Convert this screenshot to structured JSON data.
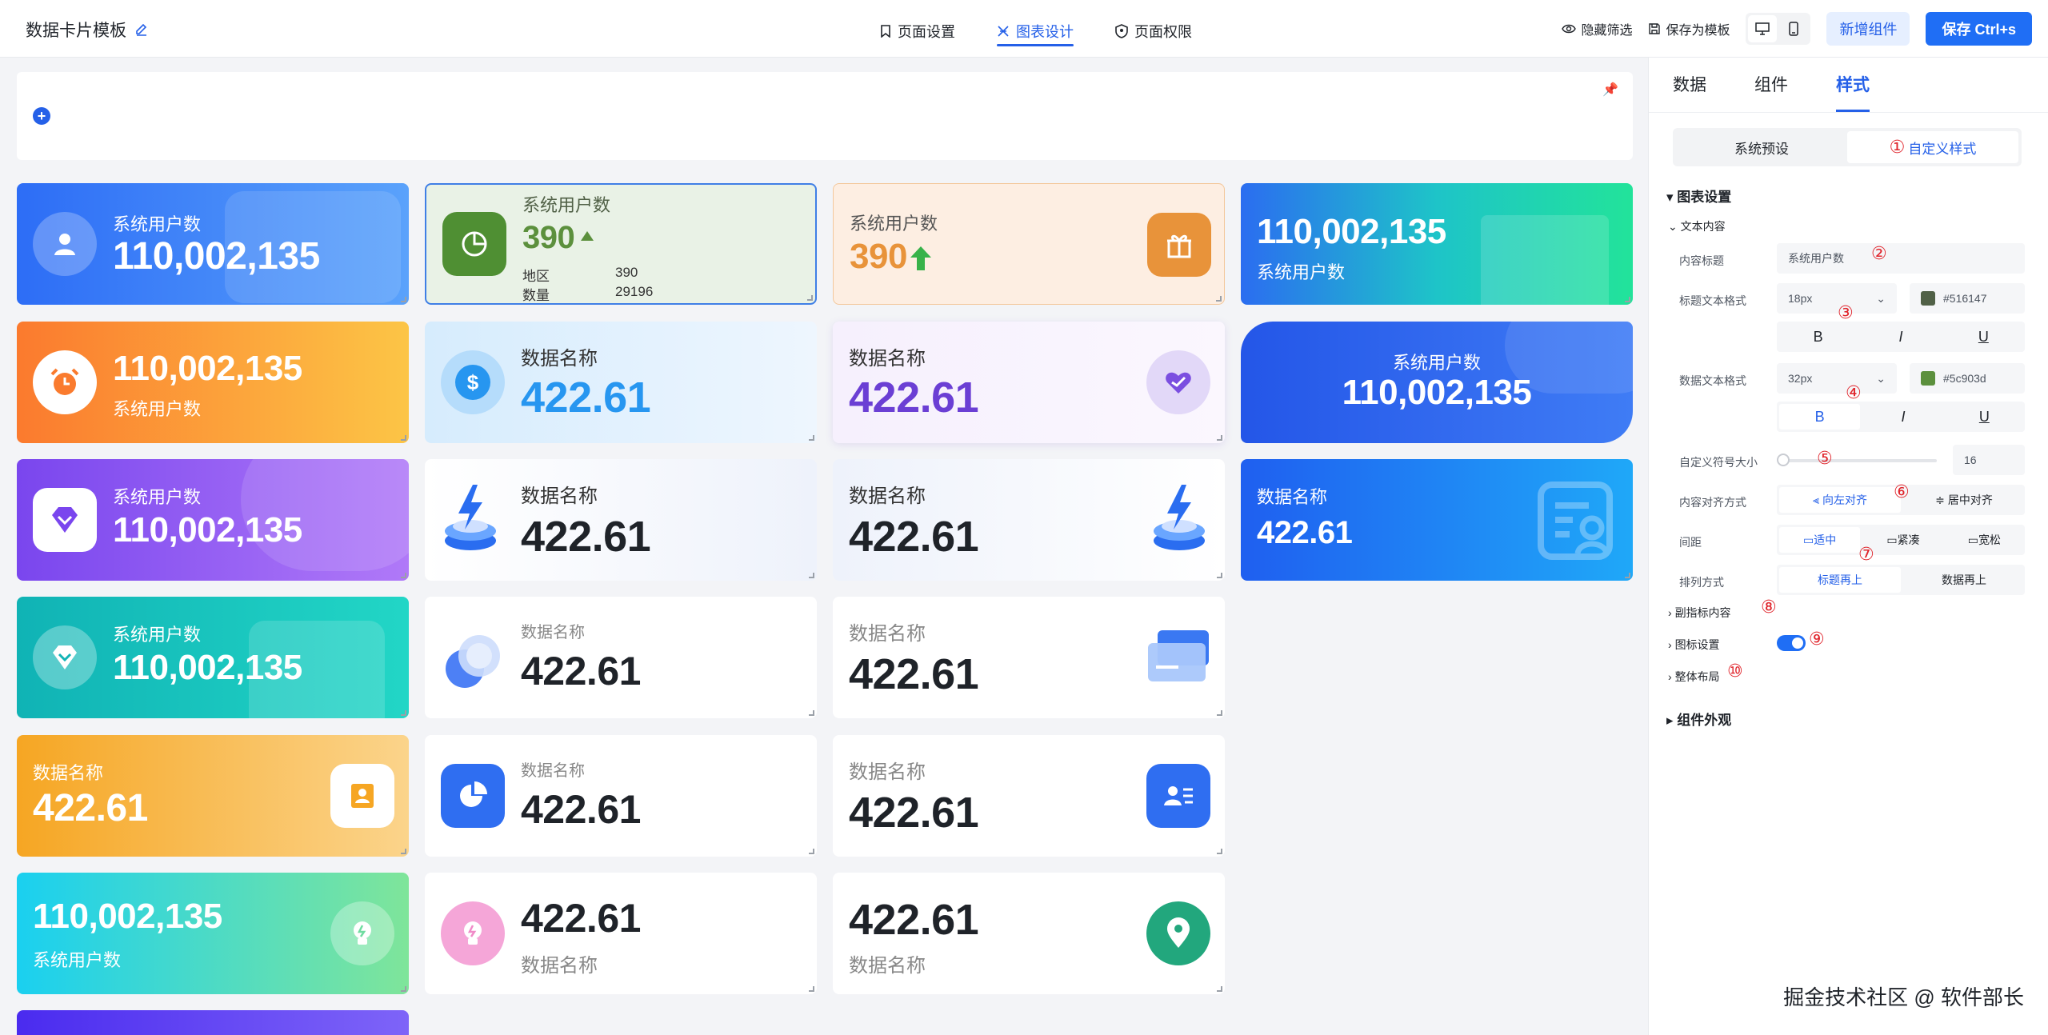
{
  "topbar": {
    "title": "数据卡片模板",
    "tabs": [
      {
        "label": "页面设置"
      },
      {
        "label": "图表设计"
      },
      {
        "label": "页面权限"
      }
    ],
    "hide_filter": "隐藏筛选",
    "save_template": "保存为模板",
    "add_component": "新增组件",
    "save": "保存 Ctrl+s"
  },
  "cards": {
    "a1": {
      "title": "系统用户数",
      "value": "110,002,135"
    },
    "a2": {
      "title": "系统用户数",
      "value": "390",
      "region_label": "地区",
      "region_value": "390",
      "qty_label": "数量",
      "qty_value": "29196"
    },
    "a3": {
      "title": "系统用户数",
      "value": "390"
    },
    "a4": {
      "title": "系统用户数",
      "value": "110,002,135"
    },
    "b1": {
      "title": "系统用户数",
      "value": "110,002,135"
    },
    "b2": {
      "title": "数据名称",
      "value": "422.61"
    },
    "b3": {
      "title": "数据名称",
      "value": "422.61"
    },
    "b4": {
      "title": "系统用户数",
      "value": "110,002,135"
    },
    "c1": {
      "title": "系统用户数",
      "value": "110,002,135"
    },
    "c2": {
      "title": "数据名称",
      "value": "422.61"
    },
    "c3": {
      "title": "数据名称",
      "value": "422.61"
    },
    "c4": {
      "title": "数据名称",
      "value": "422.61"
    },
    "d1": {
      "title": "系统用户数",
      "value": "110,002,135"
    },
    "d2": {
      "title": "数据名称",
      "value": "422.61"
    },
    "d3": {
      "title": "数据名称",
      "value": "422.61"
    },
    "e1": {
      "title": "数据名称",
      "value": "422.61"
    },
    "e2": {
      "title": "数据名称",
      "value": "422.61"
    },
    "e3": {
      "title": "数据名称",
      "value": "422.61"
    },
    "f1": {
      "title": "系统用户数",
      "value": "110,002,135"
    },
    "f2": {
      "title": "数据名称",
      "value": "422.61"
    },
    "f3": {
      "title": "数据名称",
      "value": "422.61"
    }
  },
  "panel": {
    "tabs": [
      {
        "label": "数据"
      },
      {
        "label": "组件"
      },
      {
        "label": "样式"
      }
    ],
    "seg": [
      {
        "label": "系统预设"
      },
      {
        "label": "自定义样式"
      }
    ],
    "chart_settings": "图表设置",
    "text_content": "文本内容",
    "content_title_label": "内容标题",
    "content_title_value": "系统用户数",
    "title_fmt_label": "标题文本格式",
    "title_size": "18px",
    "title_color": "#516147",
    "data_fmt_label": "数据文本格式",
    "data_size": "32px",
    "data_color": "#5c903d",
    "symbol_size_label": "自定义符号大小",
    "symbol_size_value": "16",
    "align_label": "内容对齐方式",
    "align_left": "向左对齐",
    "align_center": "居中对齐",
    "spacing_label": "间距",
    "spacing_options": [
      {
        "label": "适中"
      },
      {
        "label": "紧凑"
      },
      {
        "label": "宽松"
      }
    ],
    "order_label": "排列方式",
    "order_options": [
      {
        "label": "标题再上"
      },
      {
        "label": "数据再上"
      }
    ],
    "sub_indicator": "副指标内容",
    "icon_settings": "图标设置",
    "overall_layout": "整体布局",
    "component_appearance": "组件外观",
    "bold": "B",
    "italic": "I",
    "underline": "U",
    "markers": [
      "①",
      "②",
      "③",
      "④",
      "⑤",
      "⑥",
      "⑦",
      "⑧",
      "⑨",
      "⑩"
    ]
  },
  "watermark": "掘金技术社区 @ 软件部长"
}
